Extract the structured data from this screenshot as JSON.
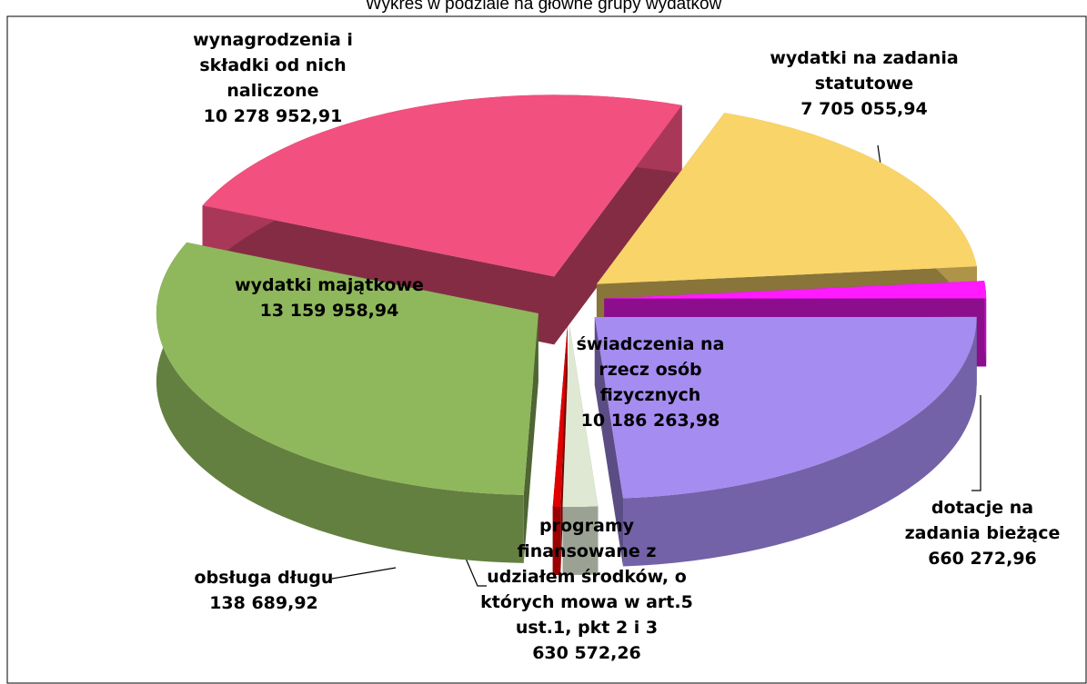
{
  "chart_data": {
    "type": "pie3d",
    "title": "Wykres w podziale na główne grupy wydatków",
    "categories": [
      "wynagrodzenia i składki od nich naliczone",
      "wydatki na zadania statutowe",
      "dotacje na zadania bieżące",
      "świadczenia na rzecz osób fizycznych",
      "programy finansowane z udziałem środków, o których mowa w art.5 ust.1, pkt 2 i 3",
      "obsługa długu",
      "wydatki majątkowe"
    ],
    "values": [
      10278952.91,
      7705055.94,
      660272.96,
      10186263.98,
      630572.26,
      138689.92,
      13159958.94
    ],
    "value_labels": [
      "10 278 952,91",
      "7 705 055,94",
      "660 272,96",
      "10 186 263,98",
      "630 572,26",
      "138 689,92",
      "13 159 958,94"
    ],
    "colors": [
      "#f2507e",
      "#f9d468",
      "#ff1aff",
      "#a58cf0",
      "#dfe8d2",
      "#e00000",
      "#8fb75c"
    ]
  }
}
